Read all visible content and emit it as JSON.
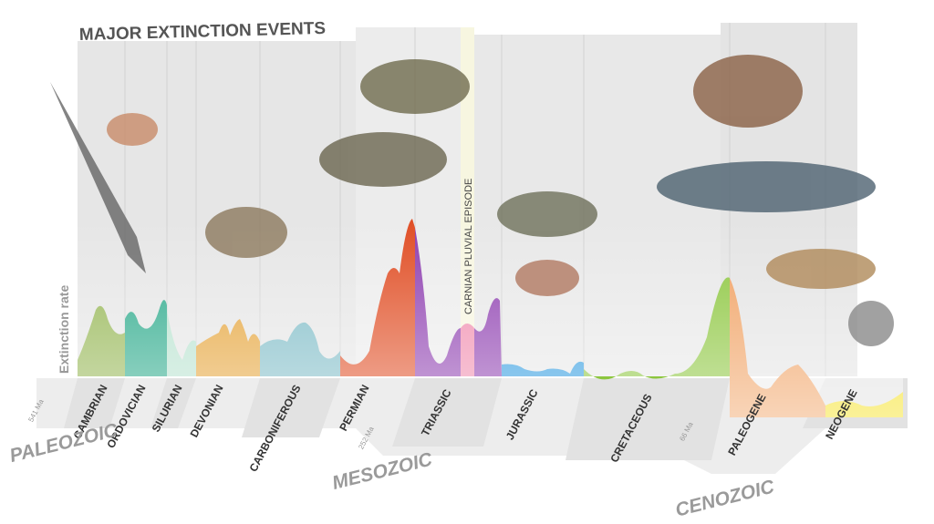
{
  "title": "MAJOR EXTINCTION EVENTS",
  "y_axis_label": "Extinction rate",
  "annotation": "CARNIAN PLUVIAL EPISODE",
  "periods": [
    "CAMBRIAN",
    "ORDOVICIAN",
    "SILURIAN",
    "DEVONIAN",
    "CARBONIFEROUS",
    "PERMIAN",
    "TRIASSIC",
    "JURASSIC",
    "CRETACEOUS",
    "PALEOGENE",
    "NEOGENE"
  ],
  "eras": [
    "PALEOZOIC",
    "MESOZOIC",
    "CENOZOIC"
  ],
  "dates": [
    "541 Ma",
    "252 Ma",
    "66 Ma"
  ]
}
